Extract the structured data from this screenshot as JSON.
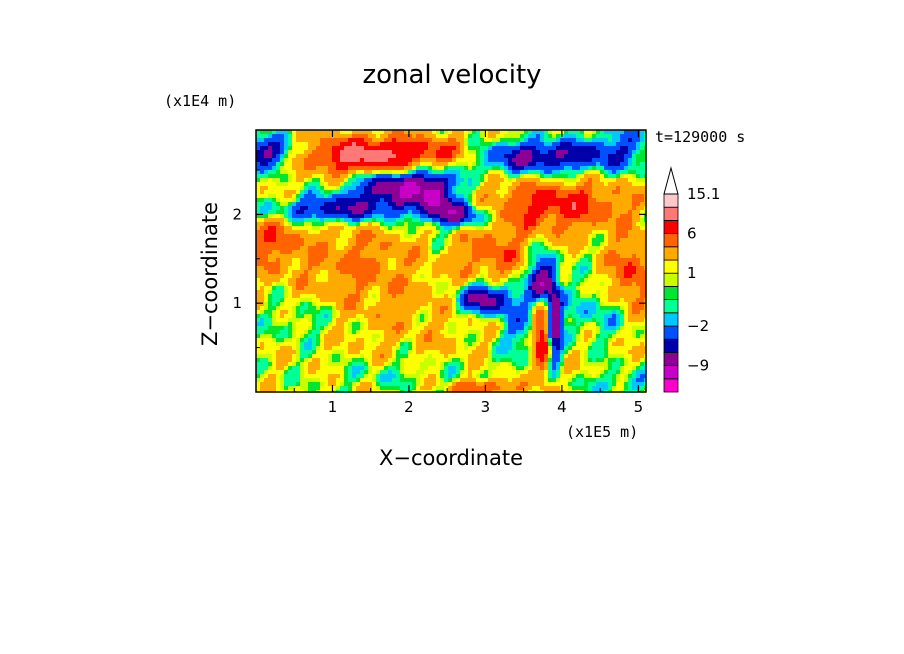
{
  "chart_data": {
    "type": "heatmap",
    "title": "zonal velocity",
    "xlabel": "X−coordinate",
    "ylabel": "Z−coordinate",
    "x_multiplier": "(x1E5 m)",
    "y_multiplier": "(x1E4 m)",
    "time_label": "t=129000 s",
    "xlim": [
      0,
      5.1
    ],
    "ylim": [
      0,
      2.95
    ],
    "x_ticks": [
      {
        "value": 1,
        "label": "1"
      },
      {
        "value": 2,
        "label": "2"
      },
      {
        "value": 3,
        "label": "3"
      },
      {
        "value": 4,
        "label": "4"
      },
      {
        "value": 5,
        "label": "5"
      }
    ],
    "y_ticks": [
      {
        "value": 1,
        "label": "1"
      },
      {
        "value": 2,
        "label": "2"
      }
    ],
    "colorbar": {
      "min": -15,
      "max": 15.1,
      "extend": "max",
      "levels": [
        {
          "upper": -12,
          "color": "#ff00cc"
        },
        {
          "upper": -9,
          "color": "#c800c8"
        },
        {
          "upper": -6,
          "color": "#8c0096"
        },
        {
          "upper": -4,
          "color": "#0000aa"
        },
        {
          "upper": -2,
          "color": "#0050ff"
        },
        {
          "upper": -1,
          "color": "#00c8ff"
        },
        {
          "upper": 0,
          "color": "#00ff96"
        },
        {
          "upper": 0.5,
          "color": "#00e632"
        },
        {
          "upper": 1,
          "color": "#c8ff00"
        },
        {
          "upper": 2,
          "color": "#ffff00"
        },
        {
          "upper": 4,
          "color": "#ffaa00"
        },
        {
          "upper": 6,
          "color": "#ff6400"
        },
        {
          "upper": 9,
          "color": "#ff0000"
        },
        {
          "upper": 12,
          "color": "#ff7878"
        },
        {
          "upper": 15.1,
          "color": "#ffc8c8"
        }
      ],
      "tick_labels": [
        {
          "value": 15.1,
          "label": "15.1"
        },
        {
          "value": 6,
          "label": "6"
        },
        {
          "value": 1,
          "label": "1"
        },
        {
          "value": -2,
          "label": "−2"
        },
        {
          "value": -9,
          "label": "−9"
        }
      ]
    },
    "features": [
      {
        "x": 0.1,
        "z": 2.7,
        "value": -8,
        "sx": 0.25,
        "sz": 0.12
      },
      {
        "x": 1.4,
        "z": 2.65,
        "value": 9,
        "sx": 0.5,
        "sz": 0.15
      },
      {
        "x": 2.4,
        "z": 2.7,
        "value": 5,
        "sx": 0.5,
        "sz": 0.12
      },
      {
        "x": 3.7,
        "z": 2.65,
        "value": -8,
        "sx": 0.7,
        "sz": 0.13
      },
      {
        "x": 4.8,
        "z": 2.8,
        "value": -3,
        "sx": 0.3,
        "sz": 0.2
      },
      {
        "x": 1.9,
        "z": 2.3,
        "value": -10,
        "sx": 0.45,
        "sz": 0.15
      },
      {
        "x": 1.0,
        "z": 2.05,
        "value": -7,
        "sx": 0.6,
        "sz": 0.1
      },
      {
        "x": 2.65,
        "z": 2.0,
        "value": -8,
        "sx": 0.3,
        "sz": 0.1
      },
      {
        "x": 2.35,
        "z": 2.2,
        "value": -6,
        "sx": 0.15,
        "sz": 0.15
      },
      {
        "x": 3.9,
        "z": 2.1,
        "value": 6,
        "sx": 0.7,
        "sz": 0.2
      },
      {
        "x": 0.2,
        "z": 1.7,
        "value": 4,
        "sx": 0.3,
        "sz": 0.25
      },
      {
        "x": 1.3,
        "z": 1.5,
        "value": 3,
        "sx": 0.5,
        "sz": 0.3
      },
      {
        "x": 3.1,
        "z": 1.55,
        "value": 4,
        "sx": 0.3,
        "sz": 0.2
      },
      {
        "x": 4.9,
        "z": 1.3,
        "value": 5,
        "sx": 0.2,
        "sz": 0.3
      },
      {
        "x": 3.0,
        "z": 1.05,
        "value": -9,
        "sx": 0.25,
        "sz": 0.12
      },
      {
        "x": 3.75,
        "z": 1.25,
        "value": -10,
        "sx": 0.12,
        "sz": 0.18
      },
      {
        "x": 3.9,
        "z": 0.75,
        "value": -9,
        "sx": 0.07,
        "sz": 0.3
      },
      {
        "x": 3.75,
        "z": 0.6,
        "value": 8,
        "sx": 0.08,
        "sz": 0.3
      },
      {
        "x": 3.45,
        "z": 0.7,
        "value": -3,
        "sx": 0.2,
        "sz": 0.25
      },
      {
        "x": 4.5,
        "z": 0.9,
        "value": -2.5,
        "sx": 0.35,
        "sz": 0.2
      },
      {
        "x": 0.6,
        "z": 0.8,
        "value": -1.5,
        "sx": 0.3,
        "sz": 0.15
      },
      {
        "x": 1.8,
        "z": 0.2,
        "value": -1.5,
        "sx": 0.6,
        "sz": 0.1
      },
      {
        "x": 3.0,
        "z": 0.05,
        "value": 5,
        "sx": 0.3,
        "sz": 0.06
      },
      {
        "x": 4.8,
        "z": 0.1,
        "value": -2.5,
        "sx": 0.3,
        "sz": 0.1
      },
      {
        "x": 2.0,
        "z": 0.9,
        "value": 1.5,
        "sx": 0.7,
        "sz": 0.4
      }
    ]
  }
}
